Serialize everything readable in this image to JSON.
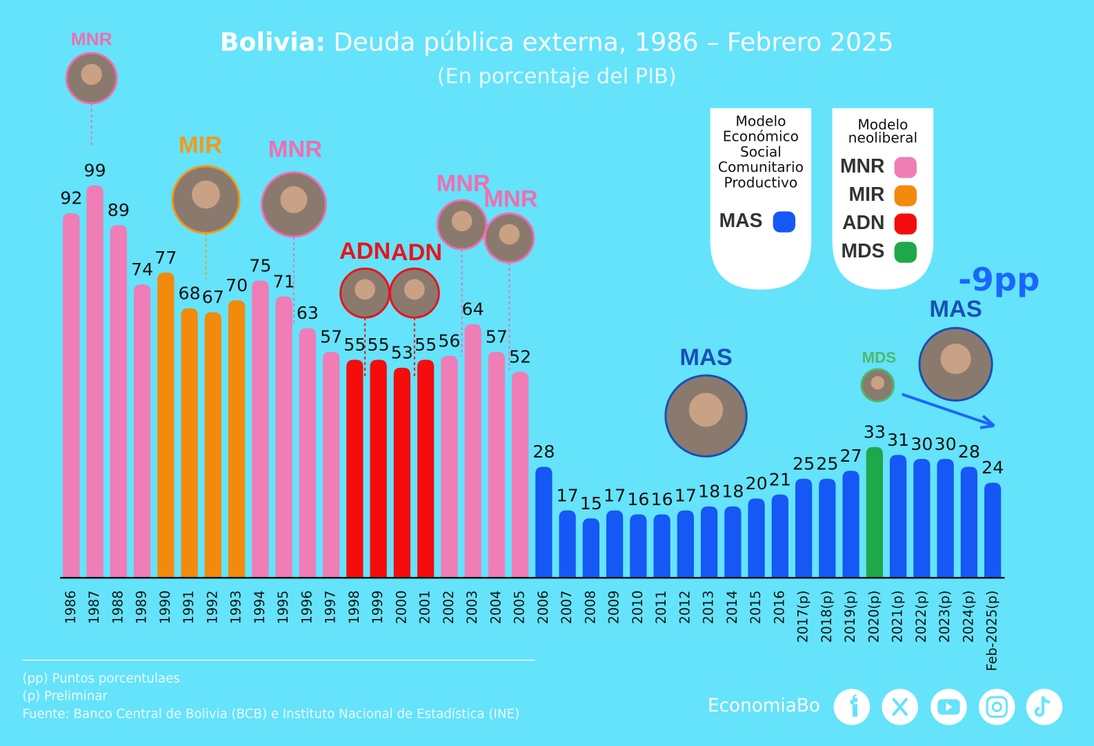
{
  "chart_data": {
    "type": "bar",
    "title_bold": "Bolivia:",
    "title": "Deuda pública externa, 1986 – Febrero 2025",
    "subtitle": "(En porcentaje del PIB)",
    "categories": [
      "1986",
      "1987",
      "1988",
      "1989",
      "1990",
      "1991",
      "1992",
      "1993",
      "1994",
      "1995",
      "1996",
      "1997",
      "1998",
      "1999",
      "2000",
      "2001",
      "2002",
      "2003",
      "2004",
      "2005",
      "2006",
      "2007",
      "2008",
      "2009",
      "2010",
      "2011",
      "2012",
      "2013",
      "2014",
      "2015",
      "2016",
      "2017(p)",
      "2018(p)",
      "2019(p)",
      "2020(p)",
      "2021(p)",
      "2022(p)",
      "2023(p)",
      "2024(p)",
      "Feb-2025(p)"
    ],
    "values": [
      92,
      99,
      89,
      74,
      77,
      68,
      67,
      70,
      75,
      71,
      63,
      57,
      55,
      55,
      53,
      55,
      56,
      64,
      57,
      52,
      28,
      17,
      15,
      17,
      16,
      16,
      17,
      18,
      18,
      20,
      21,
      25,
      25,
      27,
      33,
      31,
      30,
      30,
      28,
      24
    ],
    "colors": [
      "#ef7db6",
      "#ef7db6",
      "#ef7db6",
      "#ef7db6",
      "#f28a0c",
      "#f28a0c",
      "#f28a0c",
      "#f28a0c",
      "#ef7db6",
      "#ef7db6",
      "#ef7db6",
      "#ef7db6",
      "#f50c0c",
      "#f50c0c",
      "#f50c0c",
      "#f50c0c",
      "#ef7db6",
      "#ef7db6",
      "#ef7db6",
      "#ef7db6",
      "#1558f5",
      "#1558f5",
      "#1558f5",
      "#1558f5",
      "#1558f5",
      "#1558f5",
      "#1558f5",
      "#1558f5",
      "#1558f5",
      "#1558f5",
      "#1558f5",
      "#1558f5",
      "#1558f5",
      "#1558f5",
      "#1fa84a",
      "#1558f5",
      "#1558f5",
      "#1558f5",
      "#1558f5",
      "#1558f5"
    ],
    "legends": [
      {
        "title_lines": [
          "Modelo",
          "Económico",
          "Social",
          "Comunitario",
          "Productivo"
        ],
        "items": [
          {
            "name": "MAS",
            "color": "#1558f5"
          }
        ]
      },
      {
        "title_lines": [
          "Modelo",
          "neoliberal"
        ],
        "items": [
          {
            "name": "MNR",
            "color": "#ef7db6"
          },
          {
            "name": "MIR",
            "color": "#f28a0c"
          },
          {
            "name": "ADN",
            "color": "#f50c0c"
          },
          {
            "name": "MDS",
            "color": "#1fa84a"
          }
        ]
      }
    ],
    "annotations": [
      {
        "text": "MNR",
        "color": "#ef6fb0"
      },
      {
        "text": "MIR",
        "color": "#f29a1a"
      },
      {
        "text": "MNR",
        "color": "#ef6fb0"
      },
      {
        "text": "ADN",
        "color": "#e8141c"
      },
      {
        "text": "ADN",
        "color": "#e8141c"
      },
      {
        "text": "MNR",
        "color": "#ef6fb0"
      },
      {
        "text": "MNR",
        "color": "#ef6fb0"
      },
      {
        "text": "MAS",
        "color": "#1a4fb5"
      },
      {
        "text": "MDS",
        "color": "#4fb86a"
      },
      {
        "text": "MAS",
        "color": "#1a4fb5"
      }
    ],
    "change_label": "-9pp"
  },
  "notes": [
    "(pp) Puntos porcentulaes",
    "(p) Preliminar",
    "Fuente: Banco Central de Bolivia (BCB) e Instituto Nacional de Estadística (INE)"
  ],
  "brand": "EconomiaBo"
}
